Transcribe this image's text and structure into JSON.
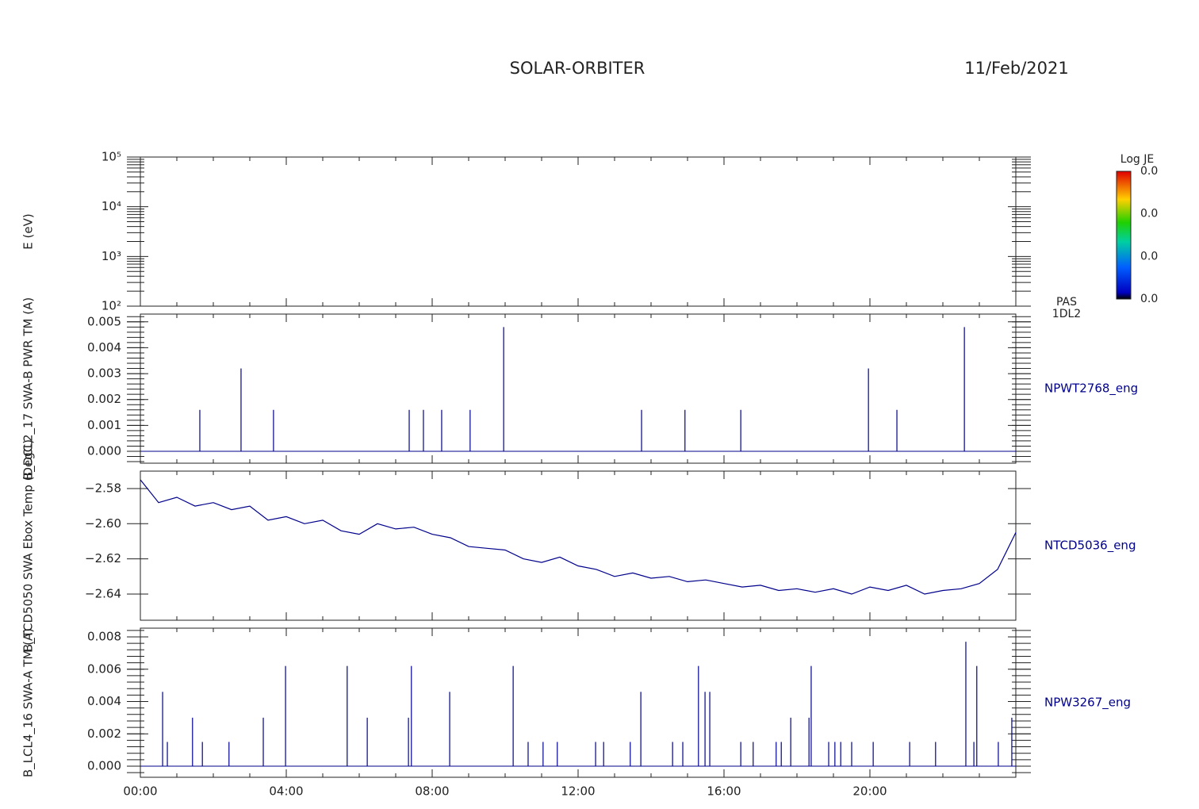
{
  "header": {
    "title": "SOLAR-ORBITER",
    "date": "11/Feb/2021"
  },
  "chart_data": [
    {
      "type": "spectrogram",
      "ylabel": "E (eV)",
      "log_y": true,
      "xlim": [
        0,
        24
      ],
      "ylim": [
        100,
        100000
      ],
      "yticks": [
        {
          "value": 100,
          "label": "10²"
        },
        {
          "value": 1000,
          "label": "10³"
        },
        {
          "value": 10000,
          "label": "10⁴"
        },
        {
          "value": 100000,
          "label": "10⁵"
        }
      ],
      "colorbar": {
        "title": "Log JE",
        "labels": [
          "0.0",
          "0.0",
          "0.0",
          "0.0"
        ]
      },
      "side_labels": [
        "PAS",
        "1DL2"
      ]
    },
    {
      "type": "stem",
      "ylabel": "B_DCL2_17 SWA-B PWR TM (A)",
      "xlim": [
        0,
        24
      ],
      "ylim": [
        -0.00046,
        0.0053
      ],
      "yticks": [
        {
          "value": 0,
          "label": "0.000"
        },
        {
          "value": 0.001,
          "label": "0.001"
        },
        {
          "value": 0.002,
          "label": "0.002"
        },
        {
          "value": 0.003,
          "label": "0.003"
        },
        {
          "value": 0.004,
          "label": "0.004"
        },
        {
          "value": 0.005,
          "label": "0.005"
        }
      ],
      "x": [
        1.63,
        2.76,
        3.65,
        7.37,
        7.76,
        8.26,
        9.04,
        9.96,
        13.74,
        14.93,
        16.46,
        19.96,
        20.74,
        22.59
      ],
      "series": [
        {
          "name": "NPWT2768_eng",
          "color": "#00008b",
          "values": [
            0.0016,
            0.0032,
            0.0016,
            0.0016,
            0.0016,
            0.0016,
            0.0016,
            0.0048,
            0.0016,
            0.0016,
            0.0016,
            0.0032,
            0.0016,
            0.0048
          ]
        }
      ]
    },
    {
      "type": "line",
      "ylabel": "B_TCD5050 SWA Ebox Temp (DegC)",
      "xlim": [
        0,
        24
      ],
      "ylim": [
        -2.6549,
        -2.5701
      ],
      "yticks": [
        {
          "value": -2.58,
          "label": "−2.58"
        },
        {
          "value": -2.6,
          "label": "−2.60"
        },
        {
          "value": -2.62,
          "label": "−2.62"
        },
        {
          "value": -2.64,
          "label": "−2.64"
        }
      ],
      "x": [
        0,
        0.5,
        1,
        1.5,
        2,
        2.5,
        3,
        3.5,
        4,
        4.5,
        5,
        5.5,
        6,
        6.5,
        7,
        7.5,
        8,
        8.5,
        9,
        9.5,
        10,
        10.5,
        11,
        11.5,
        12,
        12.5,
        13,
        13.5,
        14,
        14.5,
        15,
        15.5,
        16,
        16.5,
        17,
        17.5,
        18,
        18.5,
        19,
        19.5,
        20,
        20.5,
        21,
        21.5,
        22,
        22.5,
        23,
        23.5,
        24
      ],
      "series": [
        {
          "name": "NTCD5036_eng",
          "color": "#00008b",
          "values": [
            -2.575,
            -2.588,
            -2.585,
            -2.59,
            -2.588,
            -2.592,
            -2.59,
            -2.598,
            -2.596,
            -2.6,
            -2.598,
            -2.604,
            -2.606,
            -2.6,
            -2.603,
            -2.602,
            -2.606,
            -2.608,
            -2.613,
            -2.614,
            -2.615,
            -2.62,
            -2.622,
            -2.619,
            -2.624,
            -2.626,
            -2.63,
            -2.628,
            -2.631,
            -2.63,
            -2.633,
            -2.632,
            -2.634,
            -2.636,
            -2.635,
            -2.638,
            -2.637,
            -2.639,
            -2.637,
            -2.64,
            -2.636,
            -2.638,
            -2.635,
            -2.64,
            -2.638,
            -2.637,
            -2.634,
            -2.626,
            -2.605
          ]
        }
      ]
    },
    {
      "type": "stem",
      "ylabel": "B_LCL4_16 SWA-A TM (A)",
      "xlim": [
        0,
        24
      ],
      "ylim": [
        -0.000687,
        0.00854
      ],
      "xticks": [
        {
          "value": 0,
          "label": "00:00"
        },
        {
          "value": 4,
          "label": "04:00"
        },
        {
          "value": 8,
          "label": "08:00"
        },
        {
          "value": 12,
          "label": "12:00"
        },
        {
          "value": 16,
          "label": "16:00"
        },
        {
          "value": 20,
          "label": "20:00"
        }
      ],
      "yticks": [
        {
          "value": 0,
          "label": "0.000"
        },
        {
          "value": 0.002,
          "label": "0.002"
        },
        {
          "value": 0.004,
          "label": "0.004"
        },
        {
          "value": 0.006,
          "label": "0.006"
        },
        {
          "value": 0.008,
          "label": "0.008"
        }
      ],
      "x": [
        0.61,
        0.74,
        1.43,
        1.7,
        2.43,
        3.37,
        3.98,
        5.67,
        6.22,
        7.35,
        7.43,
        8.48,
        10.22,
        10.63,
        11.04,
        11.43,
        12.48,
        12.7,
        13.43,
        13.72,
        14.59,
        14.87,
        15.3,
        15.48,
        15.61,
        16.46,
        16.8,
        17.43,
        17.57,
        17.83,
        18.33,
        18.39,
        18.87,
        19.04,
        19.2,
        19.5,
        20.09,
        21.09,
        21.8,
        22.63,
        22.85,
        22.93,
        23.52,
        23.89
      ],
      "series": [
        {
          "name": "NPW3267_eng",
          "color": "#00008b",
          "values": [
            0.0046,
            0.0015,
            0.003,
            0.0015,
            0.0015,
            0.003,
            0.0062,
            0.0062,
            0.003,
            0.003,
            0.0062,
            0.0046,
            0.0062,
            0.0015,
            0.0015,
            0.0015,
            0.0015,
            0.0015,
            0.0015,
            0.0046,
            0.0015,
            0.0015,
            0.0062,
            0.0046,
            0.0046,
            0.0015,
            0.0015,
            0.0015,
            0.0015,
            0.003,
            0.003,
            0.0062,
            0.0015,
            0.0015,
            0.0015,
            0.0015,
            0.0015,
            0.0015,
            0.0015,
            0.0077,
            0.0015,
            0.0062,
            0.0015,
            0.003
          ]
        }
      ]
    }
  ]
}
